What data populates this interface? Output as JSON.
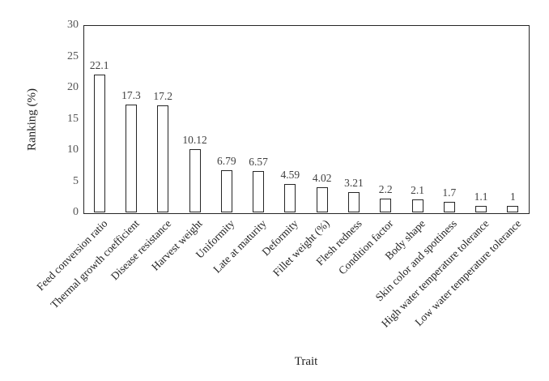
{
  "chart_data": {
    "type": "bar",
    "title": "",
    "xlabel": "Trait",
    "ylabel": "Ranking  (%)",
    "categories": [
      "Feed conversion ratio",
      "Thermal growth coefficient",
      "Disease resistance",
      "Harvest weight",
      "Uniformity",
      "Late at maturity",
      "Deformity",
      "Fillet weight (%)",
      "Flesh redness",
      "Condition factor",
      "Body shape",
      "Skin color and spottiness",
      "High water temperature tolerance",
      "Low water temperature tolerance"
    ],
    "values": [
      22.1,
      17.3,
      17.2,
      10.12,
      6.79,
      6.57,
      4.59,
      4.02,
      3.21,
      2.2,
      2.1,
      1.7,
      1.1,
      1
    ],
    "value_labels": [
      "22.1",
      "17.3",
      "17.2",
      "10.12",
      "6.79",
      "6.57",
      "4.59",
      "4.02",
      "3.21",
      "2.2",
      "2.1",
      "1.7",
      "1.1",
      "1"
    ],
    "ylim": [
      0,
      30
    ],
    "yticks": [
      0,
      5,
      10,
      15,
      20,
      25,
      30
    ],
    "grid": "off",
    "legend": "none",
    "bar_fill_color": "#ffffff",
    "bar_border_color": "#262626",
    "frame_color": "#262626",
    "tick_label_color": "#555555",
    "data_label_color": "#404040",
    "category_label_color": "#1f1f1f"
  }
}
